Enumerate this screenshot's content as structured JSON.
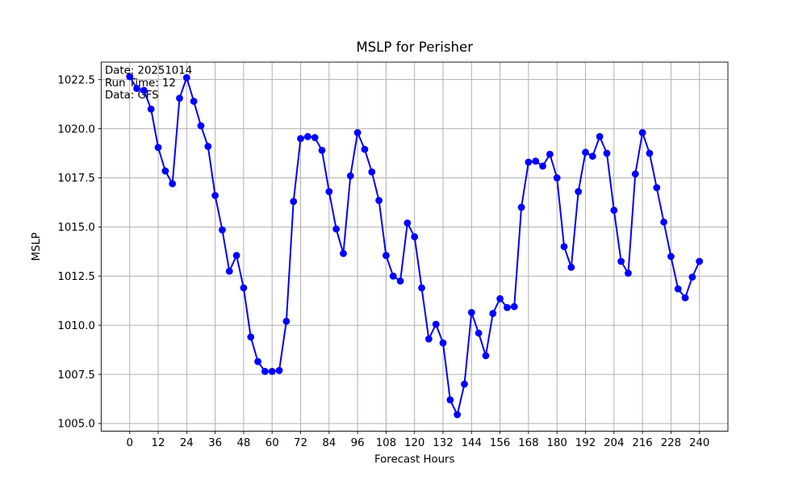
{
  "figure": {
    "background": "#ffffff"
  },
  "chart_data": {
    "type": "line",
    "title": "MSLP for Perisher",
    "xlabel": "Forecast Hours",
    "ylabel": "MSLP",
    "grid": true,
    "grid_color": "#b0b0b0",
    "line_color": "#0000ff",
    "marker": "o",
    "xlim": [
      -12,
      252
    ],
    "ylim": [
      1004.61,
      1023.39
    ],
    "xticks": [
      0,
      12,
      24,
      36,
      48,
      60,
      72,
      84,
      96,
      108,
      120,
      132,
      144,
      156,
      168,
      180,
      192,
      204,
      216,
      228,
      240
    ],
    "yticks": [
      1005.0,
      1007.5,
      1010.0,
      1012.5,
      1015.0,
      1017.5,
      1020.0,
      1022.5
    ],
    "annotation": {
      "color": "#8c8c8c",
      "lines": [
        "Date: 20251014",
        "Run Time: 12",
        "Data: GFS"
      ]
    },
    "series": [
      {
        "name": "MSLP",
        "x": [
          0,
          3,
          6,
          9,
          12,
          15,
          18,
          21,
          24,
          27,
          30,
          33,
          36,
          39,
          42,
          45,
          48,
          51,
          54,
          57,
          60,
          63,
          66,
          69,
          72,
          75,
          78,
          81,
          84,
          87,
          90,
          93,
          96,
          99,
          102,
          105,
          108,
          111,
          114,
          117,
          120,
          123,
          126,
          129,
          132,
          135,
          138,
          141,
          144,
          147,
          150,
          153,
          156,
          159,
          162,
          165,
          168,
          171,
          174,
          177,
          180,
          183,
          186,
          189,
          192,
          195,
          198,
          201,
          204,
          207,
          210,
          213,
          216,
          219,
          222,
          225,
          228,
          231,
          234,
          237,
          240
        ],
        "y": [
          1022.65,
          1022.05,
          1021.95,
          1021.0,
          1019.05,
          1017.85,
          1017.2,
          1021.55,
          1022.6,
          1021.4,
          1020.15,
          1019.1,
          1016.6,
          1014.85,
          1012.75,
          1013.55,
          1011.9,
          1009.4,
          1008.15,
          1007.65,
          1007.65,
          1007.7,
          1010.2,
          1016.3,
          1019.5,
          1019.6,
          1019.55,
          1018.9,
          1016.8,
          1014.9,
          1013.65,
          1017.6,
          1019.8,
          1018.95,
          1017.8,
          1016.35,
          1013.55,
          1012.5,
          1012.25,
          1015.2,
          1014.5,
          1011.9,
          1009.3,
          1010.05,
          1009.1,
          1006.2,
          1005.45,
          1007.0,
          1010.65,
          1009.6,
          1008.45,
          1010.6,
          1011.35,
          1010.9,
          1010.95,
          1016.0,
          1018.3,
          1018.35,
          1018.1,
          1018.7,
          1017.5,
          1014.0,
          1012.95,
          1016.8,
          1018.8,
          1018.6,
          1019.6,
          1018.75,
          1015.85,
          1013.25,
          1012.65,
          1017.7,
          1019.8,
          1018.75,
          1017.0,
          1015.25,
          1013.5,
          1011.85,
          1011.4,
          1012.45,
          1013.25
        ]
      }
    ]
  }
}
